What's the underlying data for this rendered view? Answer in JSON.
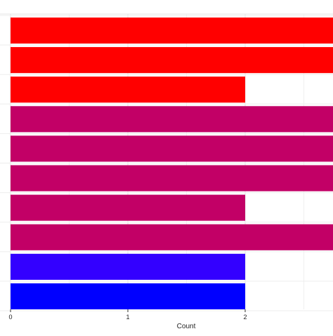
{
  "chart_data": {
    "type": "bar",
    "orientation": "horizontal",
    "title": "",
    "xlabel": "Count",
    "ylabel": "",
    "xlim": [
      0,
      2.7
    ],
    "x_ticks": [
      "0",
      "1",
      "2"
    ],
    "grid": true,
    "legend": "none",
    "bars": [
      {
        "value": 2.8,
        "color": "#FF0000"
      },
      {
        "value": 2.8,
        "color": "#FF0000"
      },
      {
        "value": 2,
        "color": "#FF0000"
      },
      {
        "value": 2.8,
        "color": "#C20066"
      },
      {
        "value": 2.8,
        "color": "#C20066"
      },
      {
        "value": 2.8,
        "color": "#C20066"
      },
      {
        "value": 2,
        "color": "#C20066"
      },
      {
        "value": 2.8,
        "color": "#C20066"
      },
      {
        "value": 2,
        "color": "#3300FF"
      },
      {
        "value": 2,
        "color": "#0000FF"
      }
    ]
  }
}
